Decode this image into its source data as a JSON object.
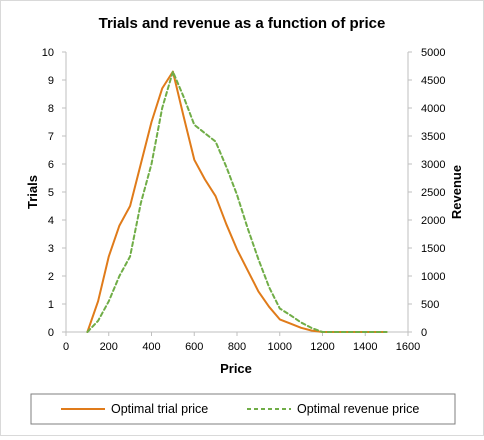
{
  "chart_data": {
    "type": "line",
    "title": "Trials and revenue as a function of price",
    "xlabel": "Price",
    "ylabel": "Trials",
    "y2label": "Revenue",
    "xlim": [
      0,
      1600
    ],
    "ylim": [
      0,
      10
    ],
    "y2lim": [
      0,
      5000
    ],
    "xticks": [
      "0",
      "200",
      "400",
      "600",
      "800",
      "1000",
      "1200",
      "1400",
      "1600"
    ],
    "yticks": [
      "0",
      "1",
      "2",
      "3",
      "4",
      "5",
      "6",
      "7",
      "8",
      "9",
      "10"
    ],
    "y2ticks": [
      "0",
      "500",
      "1000",
      "1500",
      "2000",
      "2500",
      "3000",
      "3500",
      "4000",
      "4500",
      "5000"
    ],
    "grid": false,
    "legend_position": "bottom",
    "series": [
      {
        "name": "Optimal trial price",
        "axis": "left",
        "color": "#e07b1a",
        "style": "solid",
        "x": [
          100,
          150,
          200,
          250,
          300,
          350,
          400,
          450,
          500,
          550,
          600,
          650,
          700,
          750,
          800,
          850,
          900,
          950,
          1000,
          1050,
          1100,
          1150,
          1200,
          1300,
          1400,
          1500
        ],
        "y": [
          0,
          1.1,
          2.7,
          3.8,
          4.5,
          6.0,
          7.5,
          8.7,
          9.3,
          7.7,
          6.15,
          5.45,
          4.85,
          3.85,
          2.95,
          2.2,
          1.45,
          0.9,
          0.45,
          0.3,
          0.15,
          0.05,
          0,
          0,
          0,
          0
        ]
      },
      {
        "name": "Optimal revenue price",
        "axis": "right",
        "color": "#70ad47",
        "style": "dashed",
        "x": [
          100,
          150,
          200,
          250,
          300,
          350,
          400,
          450,
          500,
          550,
          600,
          650,
          700,
          750,
          800,
          850,
          900,
          950,
          1000,
          1050,
          1100,
          1150,
          1200,
          1300,
          1400,
          1500
        ],
        "y": [
          0,
          200,
          550,
          1000,
          1350,
          2300,
          3000,
          4000,
          4650,
          4200,
          3700,
          3550,
          3400,
          2950,
          2450,
          1850,
          1300,
          800,
          420,
          300,
          170,
          70,
          0,
          0,
          0,
          0
        ]
      }
    ]
  }
}
